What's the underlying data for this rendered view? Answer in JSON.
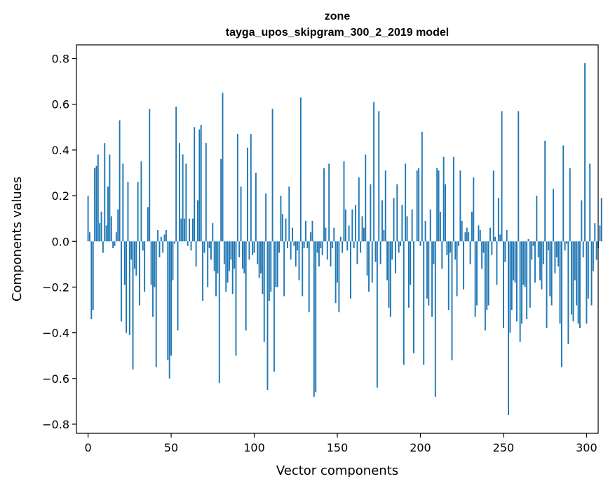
{
  "chart_data": {
    "type": "bar",
    "title": "zone",
    "subtitle": "tayga_upos_skipgram_300_2_2019 model",
    "xlabel": "Vector components",
    "ylabel": "Components values",
    "xlim": [
      -7,
      307
    ],
    "ylim": [
      -0.84,
      0.86
    ],
    "xticks": [
      0,
      50,
      100,
      150,
      200,
      250,
      300
    ],
    "yticks": [
      -0.8,
      -0.6,
      -0.4,
      -0.2,
      0.0,
      0.2,
      0.4,
      0.6,
      0.8
    ],
    "xtick_labels": [
      "0",
      "50",
      "100",
      "150",
      "200",
      "250",
      "300"
    ],
    "ytick_labels": [
      "−0.8",
      "−0.6",
      "−0.4",
      "−0.2",
      "0.0",
      "0.2",
      "0.4",
      "0.6",
      "0.8"
    ],
    "bar_color": "#1f77b4",
    "grid": false,
    "values": [
      0.2,
      0.04,
      -0.34,
      -0.3,
      0.32,
      0.33,
      0.38,
      0.08,
      0.13,
      -0.05,
      0.43,
      0.07,
      0.24,
      0.38,
      0.11,
      -0.03,
      -0.02,
      0.04,
      0.14,
      0.53,
      -0.35,
      0.34,
      -0.19,
      -0.4,
      0.26,
      -0.41,
      -0.08,
      -0.56,
      -0.12,
      -0.15,
      0.26,
      -0.28,
      0.35,
      -0.04,
      -0.22,
      0.0,
      0.15,
      0.58,
      -0.19,
      -0.33,
      -0.2,
      -0.55,
      0.05,
      -0.07,
      0.02,
      -0.05,
      0.03,
      0.05,
      -0.52,
      -0.6,
      -0.5,
      -0.17,
      -0.01,
      0.59,
      -0.39,
      0.43,
      0.1,
      0.38,
      0.1,
      0.34,
      -0.02,
      0.1,
      -0.04,
      0.1,
      0.5,
      -0.11,
      0.18,
      0.49,
      0.51,
      -0.26,
      -0.05,
      0.43,
      -0.2,
      -0.03,
      -0.08,
      0.08,
      -0.13,
      -0.24,
      -0.14,
      -0.62,
      0.36,
      0.65,
      -0.1,
      -0.22,
      -0.18,
      -0.13,
      -0.08,
      -0.23,
      -0.12,
      -0.5,
      0.47,
      -0.07,
      0.24,
      -0.12,
      -0.14,
      -0.39,
      0.41,
      -0.08,
      0.47,
      -0.06,
      -0.05,
      0.3,
      -0.1,
      -0.16,
      -0.14,
      -0.23,
      -0.44,
      0.21,
      -0.65,
      -0.26,
      -0.22,
      0.58,
      -0.57,
      -0.2,
      -0.2,
      -0.05,
      0.2,
      0.12,
      -0.24,
      0.1,
      -0.03,
      0.24,
      -0.08,
      0.06,
      -0.02,
      -0.11,
      -0.04,
      -0.17,
      0.63,
      -0.24,
      -0.03,
      0.09,
      -0.03,
      -0.31,
      0.04,
      0.09,
      -0.68,
      -0.66,
      -0.05,
      -0.11,
      -0.03,
      -0.06,
      0.32,
      0.06,
      -0.08,
      0.34,
      -0.11,
      -0.03,
      0.06,
      -0.27,
      -0.18,
      -0.31,
      0.02,
      -0.05,
      0.35,
      0.14,
      -0.04,
      0.07,
      -0.25,
      0.14,
      -0.03,
      0.16,
      -0.1,
      0.28,
      -0.05,
      0.11,
      0.06,
      0.38,
      -0.15,
      -0.22,
      0.25,
      -0.18,
      0.61,
      -0.09,
      -0.64,
      0.57,
      -0.1,
      0.18,
      0.05,
      0.31,
      -0.17,
      -0.29,
      -0.33,
      -0.08,
      0.19,
      -0.14,
      0.25,
      -0.05,
      -0.02,
      0.16,
      -0.54,
      0.34,
      0.11,
      -0.29,
      -0.19,
      0.14,
      -0.49,
      0.0,
      0.31,
      0.32,
      -0.02,
      0.48,
      -0.54,
      0.09,
      -0.25,
      -0.28,
      0.14,
      -0.33,
      -0.1,
      -0.68,
      0.32,
      0.31,
      0.13,
      -0.12,
      0.37,
      0.25,
      -0.06,
      -0.3,
      -0.05,
      -0.52,
      0.37,
      -0.08,
      -0.24,
      -0.02,
      0.31,
      0.09,
      -0.21,
      0.04,
      0.06,
      0.04,
      -0.1,
      0.13,
      0.28,
      -0.33,
      -0.28,
      0.07,
      0.05,
      -0.12,
      -0.05,
      -0.39,
      -0.3,
      -0.28,
      0.06,
      -0.06,
      0.31,
      0.02,
      -0.19,
      0.19,
      0.03,
      0.57,
      -0.38,
      -0.09,
      0.05,
      -0.76,
      -0.4,
      -0.3,
      -0.17,
      -0.18,
      -0.35,
      0.57,
      -0.44,
      -0.36,
      -0.19,
      -0.2,
      -0.34,
      0.01,
      -0.29,
      -0.08,
      -0.02,
      -0.18,
      0.2,
      -0.07,
      -0.17,
      -0.21,
      -0.1,
      0.44,
      -0.38,
      -0.04,
      -0.24,
      -0.28,
      0.23,
      -0.14,
      -0.07,
      -0.11,
      -0.36,
      -0.55,
      0.42,
      -0.04,
      -0.01,
      -0.45,
      0.32,
      -0.32,
      -0.35,
      -0.17,
      -0.28,
      -0.36,
      -0.38,
      0.18,
      -0.07,
      0.78,
      -0.36,
      -0.25,
      0.34,
      -0.28,
      -0.13,
      0.08,
      -0.08,
      -0.03,
      0.07,
      0.19
    ]
  }
}
